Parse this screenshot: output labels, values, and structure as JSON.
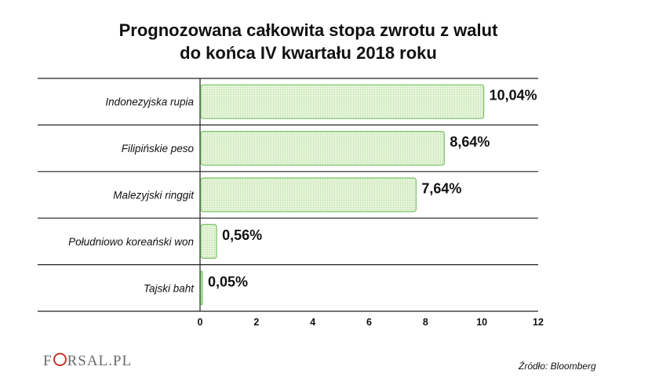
{
  "title_line1": "Prognozowana całkowita stopa zwrotu z walut",
  "title_line2": "do końca IV kwartału 2018 roku",
  "source": "Źródło: Bloomberg",
  "logo_text": "FORSAL.PL",
  "colors": {
    "bar_fill": "#e6f4da",
    "bar_stroke": "#7cc26a",
    "grid": "#222222"
  },
  "chart_data": {
    "type": "bar",
    "orientation": "horizontal",
    "categories": [
      "Indonezyjska rupia",
      "Filipińskie peso",
      "Malezyjski ringgit",
      "Południowo koreański won",
      "Tajski baht"
    ],
    "values": [
      10.04,
      8.64,
      7.64,
      0.56,
      0.05
    ],
    "value_labels": [
      "10,04%",
      "8,64%",
      "7,64%",
      "0,56%",
      "0,05%"
    ],
    "xlim": [
      0,
      12
    ],
    "xticks": [
      0,
      2,
      4,
      6,
      8,
      10,
      12
    ],
    "xlabel": "",
    "ylabel": "",
    "grid": "horizontal separators between categories"
  }
}
